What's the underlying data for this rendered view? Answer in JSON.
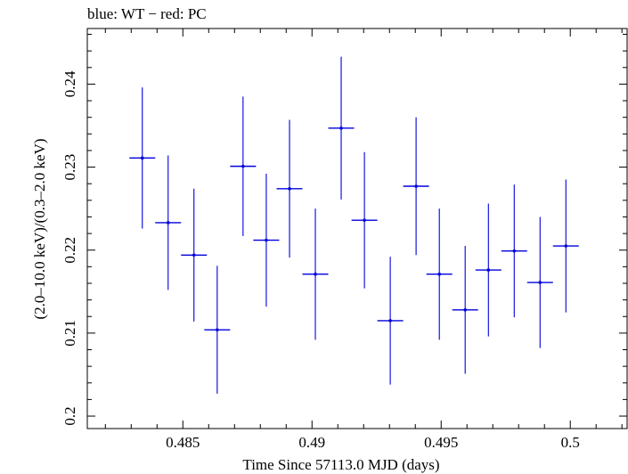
{
  "chart_data": {
    "type": "scatter",
    "title": "blue: WT − red: PC",
    "xlabel": "Time Since 57113.0 MJD (days)",
    "ylabel": "(2.0–10.0 keV)/(0.3–2.0 keV)",
    "xlim": [
      0.4813,
      0.5022
    ],
    "ylim": [
      0.1985,
      0.2467
    ],
    "x_ticks": [
      0.485,
      0.49,
      0.495,
      0.5
    ],
    "x_tick_labels": [
      "0.485",
      "0.49",
      "0.495",
      "0.5"
    ],
    "y_ticks": [
      0.2,
      0.21,
      0.22,
      0.23,
      0.24
    ],
    "y_tick_labels": [
      "0.2",
      "0.21",
      "0.22",
      "0.23",
      "0.24"
    ],
    "grid": false,
    "series": [
      {
        "color": "#0000dd",
        "points": [
          {
            "x": 0.48343,
            "xerr": 0.0005,
            "y": 0.2311,
            "yerr": 0.0085
          },
          {
            "x": 0.48443,
            "xerr": 0.0005,
            "y": 0.2233,
            "yerr": 0.0081
          },
          {
            "x": 0.48543,
            "xerr": 0.0005,
            "y": 0.2194,
            "yerr": 0.008
          },
          {
            "x": 0.48633,
            "xerr": 0.0005,
            "y": 0.2104,
            "yerr": 0.0077
          },
          {
            "x": 0.48733,
            "xerr": 0.0005,
            "y": 0.2301,
            "yerr": 0.0084
          },
          {
            "x": 0.48823,
            "xerr": 0.0005,
            "y": 0.2212,
            "yerr": 0.008
          },
          {
            "x": 0.48913,
            "xerr": 0.0005,
            "y": 0.2274,
            "yerr": 0.0083
          },
          {
            "x": 0.49013,
            "xerr": 0.0005,
            "y": 0.2171,
            "yerr": 0.0079
          },
          {
            "x": 0.49113,
            "xerr": 0.0005,
            "y": 0.2347,
            "yerr": 0.0086
          },
          {
            "x": 0.49203,
            "xerr": 0.0005,
            "y": 0.2236,
            "yerr": 0.0082
          },
          {
            "x": 0.49303,
            "xerr": 0.0005,
            "y": 0.2115,
            "yerr": 0.0077
          },
          {
            "x": 0.49403,
            "xerr": 0.0005,
            "y": 0.2277,
            "yerr": 0.0083
          },
          {
            "x": 0.49493,
            "xerr": 0.0005,
            "y": 0.2171,
            "yerr": 0.0079
          },
          {
            "x": 0.49593,
            "xerr": 0.0005,
            "y": 0.2128,
            "yerr": 0.0077
          },
          {
            "x": 0.49683,
            "xerr": 0.0005,
            "y": 0.2176,
            "yerr": 0.008
          },
          {
            "x": 0.49783,
            "xerr": 0.0005,
            "y": 0.2199,
            "yerr": 0.008
          },
          {
            "x": 0.49883,
            "xerr": 0.0005,
            "y": 0.2161,
            "yerr": 0.0079
          },
          {
            "x": 0.49983,
            "xerr": 0.0005,
            "y": 0.2205,
            "yerr": 0.008
          }
        ]
      }
    ]
  }
}
